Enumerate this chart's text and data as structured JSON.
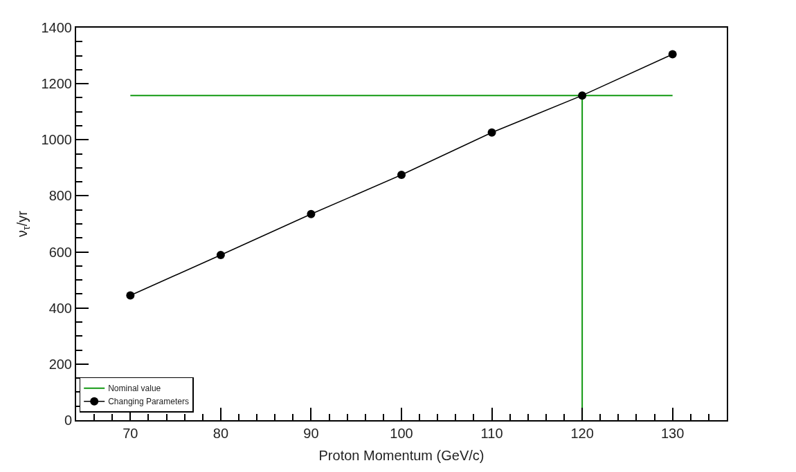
{
  "chart_data": {
    "type": "line",
    "xlabel": "Proton Momentum (GeV/c)",
    "ylabel": "ν$_{τ}$/yr",
    "xlim": [
      64,
      136
    ],
    "xticks": [
      70,
      80,
      90,
      100,
      110,
      120,
      130
    ],
    "ylim": [
      0,
      1400
    ],
    "yticks": [
      0,
      200,
      400,
      600,
      800,
      1000,
      1200,
      1400
    ],
    "series": [
      {
        "name": "Nominal value",
        "color": "#119911",
        "x": [
          70,
          130,
          120,
          120
        ],
        "values": [
          1158,
          1158,
          1158,
          0
        ],
        "marker": "none"
      },
      {
        "name": "Changing Parameters",
        "color": "#000000",
        "x": [
          70,
          80,
          90,
          100,
          110,
          120,
          130
        ],
        "values": [
          445,
          589,
          735,
          875,
          1026,
          1158,
          1305
        ],
        "marker": "circle"
      }
    ],
    "legend": "bottom left",
    "line_style": "solid"
  }
}
